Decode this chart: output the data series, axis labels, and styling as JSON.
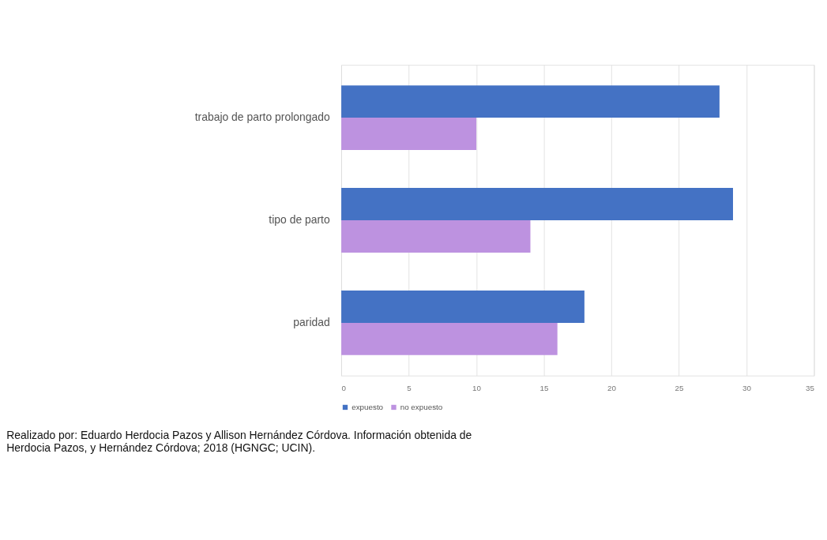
{
  "chart_data": {
    "type": "bar",
    "orientation": "horizontal",
    "categories": [
      "trabajo de parto prolongado",
      "tipo de parto",
      "paridad"
    ],
    "series": [
      {
        "name": "expuesto",
        "color": "#4472c4",
        "values": [
          28,
          29,
          18
        ]
      },
      {
        "name": "no expuesto",
        "color": "#bd92e0",
        "values": [
          10,
          14,
          16
        ]
      }
    ],
    "xlim": [
      0,
      35
    ],
    "xticks": [
      0,
      5,
      10,
      15,
      20,
      25,
      30,
      35
    ],
    "grid": "x",
    "legend": "bottom",
    "annotations": [
      "Realizado por: Eduardo Herdocia Pazos y Allison Hernández Córdova. Información obtenida de Herdocia Pazos, y Hernández Córdova; 2018 (HGNGC; UCIN)."
    ]
  }
}
